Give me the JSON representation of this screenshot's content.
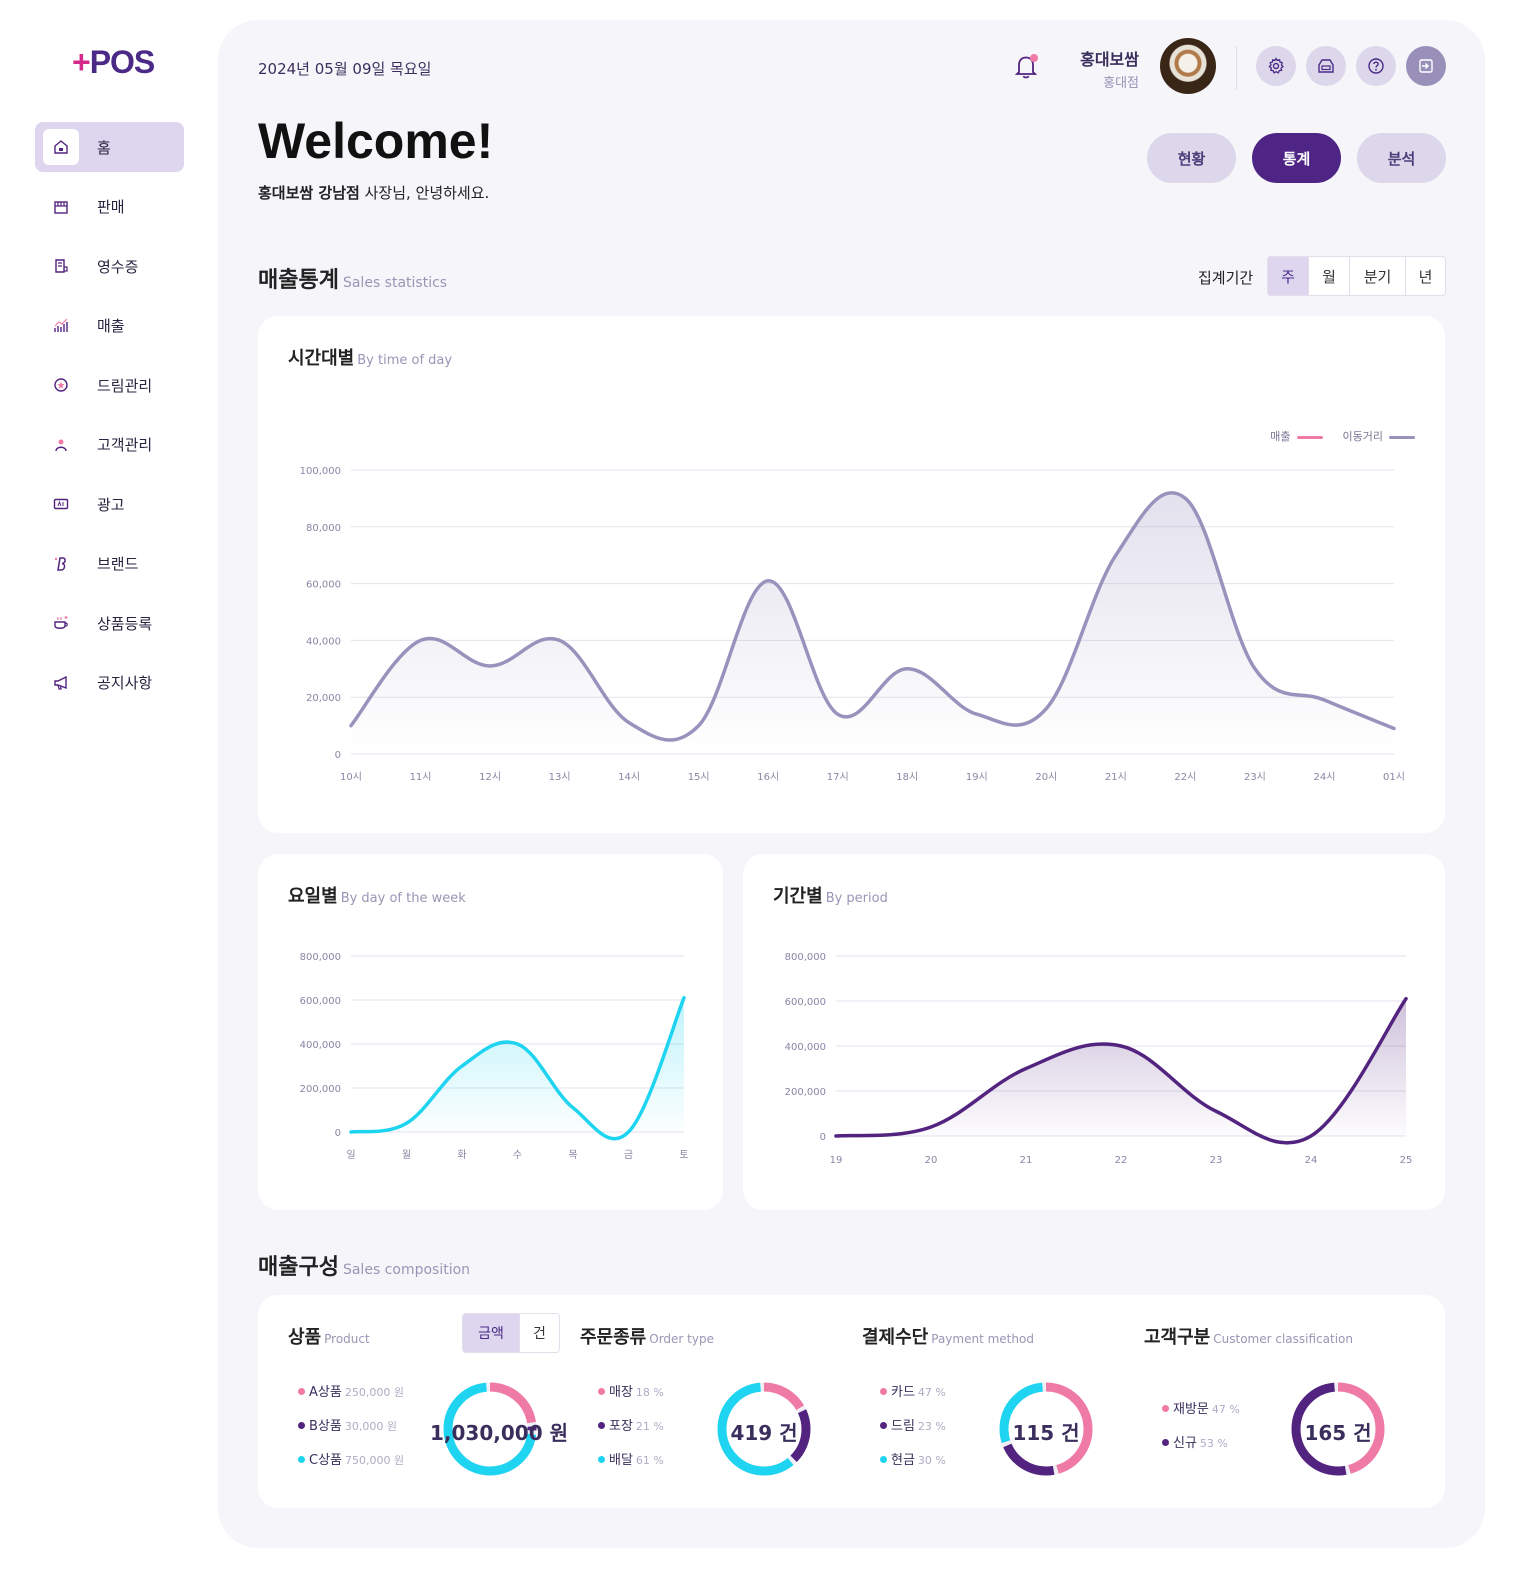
{
  "brand": {
    "plus": "+",
    "name": "POS"
  },
  "sidebar": {
    "items": [
      {
        "label": "홈",
        "icon": "home-icon",
        "active": true
      },
      {
        "label": "판매",
        "icon": "store-icon"
      },
      {
        "label": "영수증",
        "icon": "receipt-icon"
      },
      {
        "label": "매출",
        "icon": "sales-chart-icon"
      },
      {
        "label": "드림관리",
        "icon": "dream-icon"
      },
      {
        "label": "고객관리",
        "icon": "customer-icon"
      },
      {
        "label": "광고",
        "icon": "ad-icon"
      },
      {
        "label": "브랜드",
        "icon": "brand-icon"
      },
      {
        "label": "상품등록",
        "icon": "product-icon"
      },
      {
        "label": "공지사항",
        "icon": "megaphone-icon"
      }
    ]
  },
  "header": {
    "date": "2024년 05월 09일 목요일",
    "user_name": "홍대보쌈",
    "store_name": "홍대점",
    "icons": [
      "bell-icon",
      "settings-icon",
      "register-icon",
      "help-icon",
      "logout-icon"
    ],
    "notification_color": "#f07aa6"
  },
  "welcome": {
    "title": "Welcome!",
    "greeting_bold": "홍대보쌈 강남점",
    "greeting_rest": " 사장님, 안녕하세요."
  },
  "view_tabs": [
    {
      "label": "현황"
    },
    {
      "label": "통계",
      "active": true
    },
    {
      "label": "분석"
    }
  ],
  "sales_stats": {
    "title": "매출통계",
    "title_en": "Sales statistics",
    "period_label": "집계기간",
    "periods": [
      {
        "label": "주",
        "active": true
      },
      {
        "label": "월"
      },
      {
        "label": "분기"
      },
      {
        "label": "년"
      }
    ]
  },
  "time_chart": {
    "title": "시간대별",
    "title_en": "By time of day"
  },
  "weekday_chart": {
    "title": "요일별",
    "title_en": "By day of the week"
  },
  "period_chart": {
    "title": "기간별",
    "title_en": "By period"
  },
  "chart_data": [
    {
      "type": "area",
      "x": [
        "10시",
        "11시",
        "12시",
        "13시",
        "14시",
        "15시",
        "16시",
        "17시",
        "18시",
        "19시",
        "20시",
        "21시",
        "22시",
        "23시",
        "24시",
        "01시"
      ],
      "series": [
        {
          "name": "이동거리",
          "values": [
            10000,
            40000,
            31000,
            40000,
            11000,
            10000,
            61000,
            14000,
            30000,
            14000,
            16000,
            70000,
            90000,
            30000,
            19000,
            9000
          ],
          "color": "#9a92bd"
        }
      ],
      "legend": [
        {
          "name": "매출",
          "color": "#f07aa6"
        },
        {
          "name": "이동거리",
          "color": "#9a92bd"
        }
      ],
      "legend_position": "top-right",
      "yticks": [
        "0",
        "20,000",
        "40,000",
        "60,000",
        "80,000",
        "100,000"
      ],
      "ylim": [
        0,
        100000
      ],
      "grid": true
    },
    {
      "type": "area",
      "x": [
        "일",
        "월",
        "화",
        "수",
        "목",
        "금",
        "토"
      ],
      "series": [
        {
          "values": [
            0,
            40000,
            300000,
            400000,
            110000,
            0,
            610000
          ],
          "color": "#1ed4f0"
        }
      ],
      "yticks": [
        "0",
        "200,000",
        "400,000",
        "600,000",
        "800,000"
      ],
      "ylim": [
        0,
        800000
      ],
      "grid": true
    },
    {
      "type": "area",
      "x": [
        "19",
        "20",
        "21",
        "22",
        "23",
        "24",
        "25"
      ],
      "series": [
        {
          "values": [
            0,
            40000,
            300000,
            400000,
            110000,
            0,
            610000
          ],
          "color": "#52237f"
        }
      ],
      "yticks": [
        "0",
        "200,000",
        "400,000",
        "600,000",
        "800,000"
      ],
      "ylim": [
        0,
        800000
      ],
      "grid": true
    }
  ],
  "composition": {
    "title": "매출구성",
    "title_en": "Sales composition",
    "product": {
      "title": "상품",
      "title_en": "Product",
      "toggle": [
        {
          "label": "금액",
          "active": true
        },
        {
          "label": "건"
        }
      ],
      "items": [
        {
          "label": "A상품",
          "value": "250,000 원",
          "color": "#f07aa6",
          "fraction": 0.24
        },
        {
          "label": "B상품",
          "value": "30,000 원",
          "color": "#52237f",
          "fraction": 0.03
        },
        {
          "label": "C상품",
          "value": "750,000 원",
          "color": "#1ed4f0",
          "fraction": 0.73
        }
      ],
      "total": "1,030,000 원"
    },
    "order_type": {
      "title": "주문종류",
      "title_en": "Order type",
      "items": [
        {
          "label": "매장",
          "value": "18 %",
          "color": "#f07aa6",
          "fraction": 0.18
        },
        {
          "label": "포장",
          "value": "21 %",
          "color": "#52237f",
          "fraction": 0.21
        },
        {
          "label": "배달",
          "value": "61 %",
          "color": "#1ed4f0",
          "fraction": 0.61
        }
      ],
      "total": "419 건"
    },
    "payment": {
      "title": "결제수단",
      "title_en": "Payment method",
      "items": [
        {
          "label": "카드",
          "value": "47 %",
          "color": "#f07aa6",
          "fraction": 0.47
        },
        {
          "label": "드림",
          "value": "23 %",
          "color": "#52237f",
          "fraction": 0.23
        },
        {
          "label": "현금",
          "value": "30 %",
          "color": "#1ed4f0",
          "fraction": 0.3
        }
      ],
      "total": "115 건"
    },
    "customer": {
      "title": "고객구분",
      "title_en": "Customer classification",
      "items": [
        {
          "label": "재방문",
          "value": "47 %",
          "color": "#f07aa6",
          "fraction": 0.47
        },
        {
          "label": "신규",
          "value": "53 %",
          "color": "#52237f",
          "fraction": 0.53
        }
      ],
      "total": "165 건"
    }
  }
}
